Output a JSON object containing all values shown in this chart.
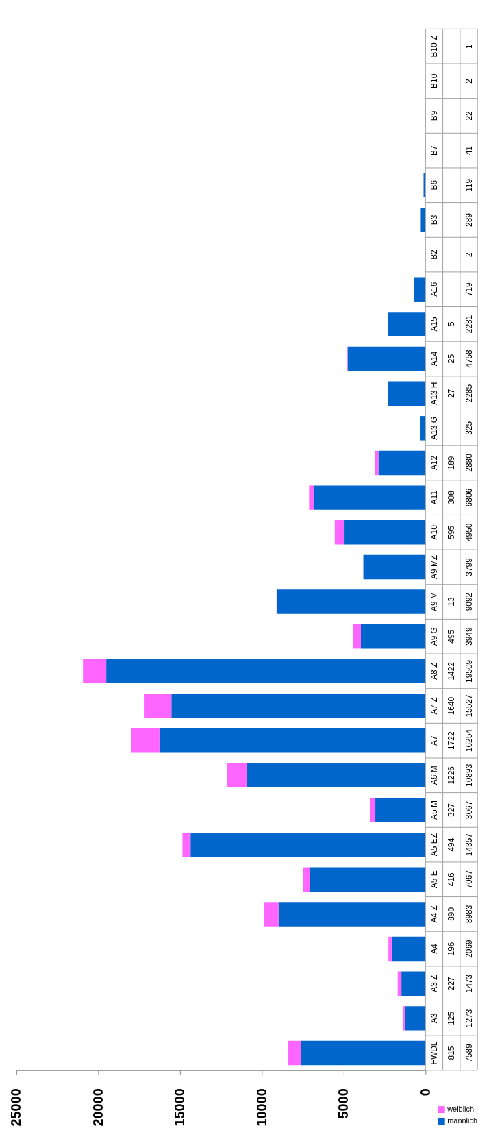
{
  "chart_data": {
    "type": "bar",
    "orientation": "horizontal",
    "stacked": true,
    "categories": [
      "B10 Z",
      "B10",
      "B9",
      "B7",
      "B6",
      "B3",
      "B2",
      "A16",
      "A15",
      "A14",
      "A13 H",
      "A13 G",
      "A12",
      "A11",
      "A10",
      "A9 MZ",
      "A9 M",
      "A9 G",
      "A8 Z",
      "A7 Z",
      "A7",
      "A6 M",
      "A5 M",
      "A5 EZ",
      "A5 E",
      "A4 Z",
      "A4",
      "A3 Z",
      "A3",
      "FWDL"
    ],
    "series": [
      {
        "name": "männlich",
        "color": "#0066cc",
        "values": [
          1,
          2,
          22,
          41,
          119,
          289,
          2,
          719,
          2281,
          4758,
          2285,
          325,
          2880,
          6806,
          4950,
          3799,
          9092,
          3949,
          19509,
          15527,
          16254,
          10893,
          3067,
          14357,
          7067,
          8983,
          2069,
          1473,
          1273,
          7589
        ]
      },
      {
        "name": "weiblich",
        "color": "#ff66ff",
        "values": [
          null,
          null,
          null,
          null,
          null,
          null,
          null,
          null,
          5,
          25,
          27,
          null,
          189,
          308,
          595,
          null,
          13,
          495,
          1422,
          1640,
          1722,
          1226,
          327,
          494,
          416,
          890,
          196,
          227,
          125,
          815
        ]
      }
    ],
    "xlim": [
      25000,
      0
    ],
    "xticks": [
      0,
      5000,
      10000,
      15000,
      20000,
      25000
    ],
    "data_labels": true,
    "legend": "bottom right"
  }
}
